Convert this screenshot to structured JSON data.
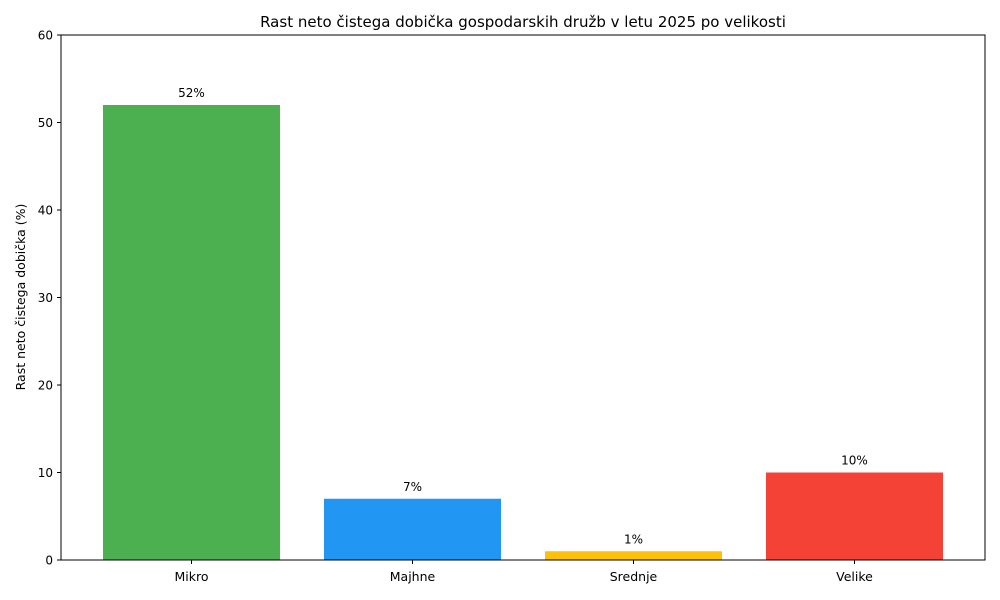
{
  "chart_data": {
    "type": "bar",
    "title": "Rast neto čistega dobička gospodarskih družb v letu 2025 po velikosti",
    "xlabel": "",
    "ylabel": "Rast neto čistega dobička (%)",
    "categories": [
      "Mikro",
      "Majhne",
      "Srednje",
      "Velike"
    ],
    "values": [
      52,
      7,
      1,
      10
    ],
    "data_labels": [
      "52%",
      "7%",
      "1%",
      "10%"
    ],
    "colors": [
      "#4caf50",
      "#2196f3",
      "#ffc107",
      "#f44336"
    ],
    "ylim": [
      0,
      60
    ],
    "yticks": [
      0,
      10,
      20,
      30,
      40,
      50,
      60
    ],
    "ytick_labels": [
      "0",
      "10",
      "20",
      "30",
      "40",
      "50",
      "60"
    ],
    "grid": false,
    "legend": "none"
  }
}
